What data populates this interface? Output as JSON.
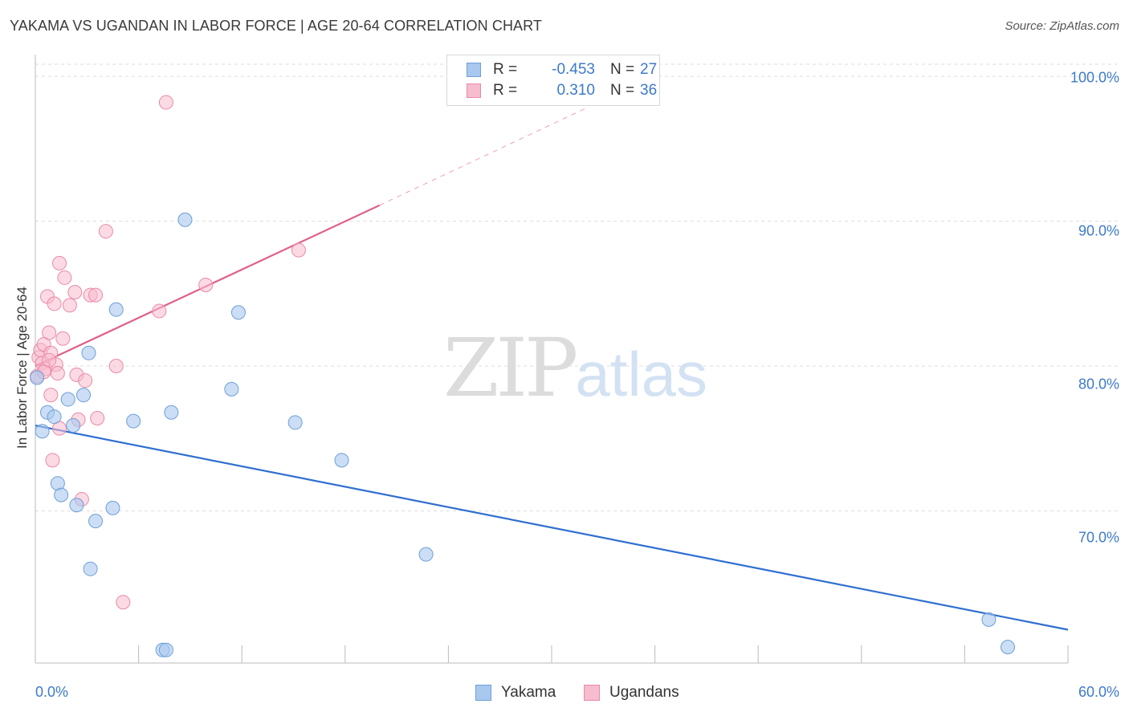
{
  "header": {
    "title": "YAKAMA VS UGANDAN IN LABOR FORCE | AGE 20-64 CORRELATION CHART",
    "source": "Source: ZipAtlas.com"
  },
  "watermark": {
    "zip": "ZIP",
    "atlas": "atlas"
  },
  "legend": {
    "rows": [
      {
        "r_label": "R =",
        "r_value": "-0.453",
        "n_label": "N =",
        "n_value": "27"
      },
      {
        "r_label": "R =",
        "r_value": "0.310",
        "n_label": "N =",
        "n_value": "36"
      }
    ]
  },
  "bottom_legend": {
    "yakama": "Yakama",
    "ugandans": "Ugandans"
  },
  "colors": {
    "yakama_fill": "#a9c8ef",
    "yakama_stroke": "#6f9fd8",
    "yakama_line": "#2f6fd0",
    "ugandans_fill": "#f7bccd",
    "ugandans_stroke": "#e98aa8",
    "ugandans_line": "#e0608a",
    "grid": "#dddddd",
    "tick_text": "#3d7ac9"
  },
  "chart_data": {
    "type": "scatter",
    "title": "YAKAMA VS UGANDAN IN LABOR FORCE | AGE 20-64 CORRELATION CHART",
    "xlabel": "",
    "ylabel": "In Labor Force | Age 20-64",
    "xlim": [
      0,
      60
    ],
    "ylim": [
      59.5,
      101.5
    ],
    "x_tick_labels": [
      {
        "value": 0,
        "label": "0.0%"
      },
      {
        "value": 60,
        "label": "60.0%"
      }
    ],
    "y_tick_labels": [
      {
        "value": 100,
        "label": "100.0%"
      },
      {
        "value": 90,
        "label": "90.0%"
      },
      {
        "value": 80,
        "label": "80.0%"
      },
      {
        "value": 70,
        "label": "70.0%"
      }
    ],
    "x_minor_ticks": [
      0,
      6,
      12,
      18,
      24,
      30,
      36,
      42,
      48,
      54,
      60
    ],
    "series": [
      {
        "name": "Yakama",
        "r": -0.453,
        "n": 27,
        "trend": {
          "x": [
            0,
            60
          ],
          "y": [
            75.9,
            61.8
          ]
        },
        "points": [
          {
            "x": 0.4,
            "y": 75.5
          },
          {
            "x": 0.7,
            "y": 76.8
          },
          {
            "x": 1.1,
            "y": 76.5
          },
          {
            "x": 1.3,
            "y": 71.9
          },
          {
            "x": 1.5,
            "y": 71.1
          },
          {
            "x": 1.9,
            "y": 77.7
          },
          {
            "x": 2.2,
            "y": 75.9
          },
          {
            "x": 2.4,
            "y": 70.4
          },
          {
            "x": 2.8,
            "y": 78.0
          },
          {
            "x": 3.1,
            "y": 80.9
          },
          {
            "x": 3.2,
            "y": 66.0
          },
          {
            "x": 3.5,
            "y": 69.3
          },
          {
            "x": 4.5,
            "y": 70.2
          },
          {
            "x": 4.7,
            "y": 83.9
          },
          {
            "x": 5.7,
            "y": 76.2
          },
          {
            "x": 7.4,
            "y": 60.4
          },
          {
            "x": 7.6,
            "y": 60.4
          },
          {
            "x": 7.9,
            "y": 76.8
          },
          {
            "x": 8.7,
            "y": 90.1
          },
          {
            "x": 11.4,
            "y": 78.4
          },
          {
            "x": 11.8,
            "y": 83.7
          },
          {
            "x": 15.1,
            "y": 76.1
          },
          {
            "x": 17.8,
            "y": 73.5
          },
          {
            "x": 22.7,
            "y": 67.0
          },
          {
            "x": 55.4,
            "y": 62.5
          },
          {
            "x": 56.5,
            "y": 60.6
          },
          {
            "x": 0.1,
            "y": 79.2
          }
        ]
      },
      {
        "name": "Ugandans",
        "r": 0.31,
        "n": 36,
        "trend": {
          "x": [
            0,
            20
          ],
          "y": [
            80.0,
            91.1
          ]
        },
        "trend_dashed": {
          "x": [
            20,
            32
          ],
          "y": [
            91.1,
            97.8
          ]
        },
        "points": [
          {
            "x": 0.1,
            "y": 79.3
          },
          {
            "x": 0.2,
            "y": 80.6
          },
          {
            "x": 0.3,
            "y": 81.1
          },
          {
            "x": 0.4,
            "y": 80.2
          },
          {
            "x": 0.5,
            "y": 81.5
          },
          {
            "x": 0.6,
            "y": 79.8
          },
          {
            "x": 0.7,
            "y": 84.8
          },
          {
            "x": 0.8,
            "y": 82.3
          },
          {
            "x": 0.9,
            "y": 80.9
          },
          {
            "x": 0.9,
            "y": 78.0
          },
          {
            "x": 1.0,
            "y": 73.5
          },
          {
            "x": 1.1,
            "y": 84.3
          },
          {
            "x": 1.2,
            "y": 80.1
          },
          {
            "x": 1.3,
            "y": 79.5
          },
          {
            "x": 1.4,
            "y": 75.7
          },
          {
            "x": 1.4,
            "y": 87.1
          },
          {
            "x": 1.6,
            "y": 81.9
          },
          {
            "x": 1.7,
            "y": 86.1
          },
          {
            "x": 2.0,
            "y": 84.2
          },
          {
            "x": 2.3,
            "y": 85.1
          },
          {
            "x": 2.4,
            "y": 79.4
          },
          {
            "x": 2.5,
            "y": 76.3
          },
          {
            "x": 2.7,
            "y": 70.8
          },
          {
            "x": 2.9,
            "y": 79.0
          },
          {
            "x": 3.2,
            "y": 84.9
          },
          {
            "x": 3.5,
            "y": 84.9
          },
          {
            "x": 3.6,
            "y": 76.4
          },
          {
            "x": 4.1,
            "y": 89.3
          },
          {
            "x": 4.7,
            "y": 80.0
          },
          {
            "x": 5.1,
            "y": 63.7
          },
          {
            "x": 7.2,
            "y": 83.8
          },
          {
            "x": 7.6,
            "y": 98.2
          },
          {
            "x": 9.9,
            "y": 85.6
          },
          {
            "x": 15.3,
            "y": 88.0
          },
          {
            "x": 0.5,
            "y": 79.6
          },
          {
            "x": 0.8,
            "y": 80.4
          }
        ]
      }
    ]
  }
}
